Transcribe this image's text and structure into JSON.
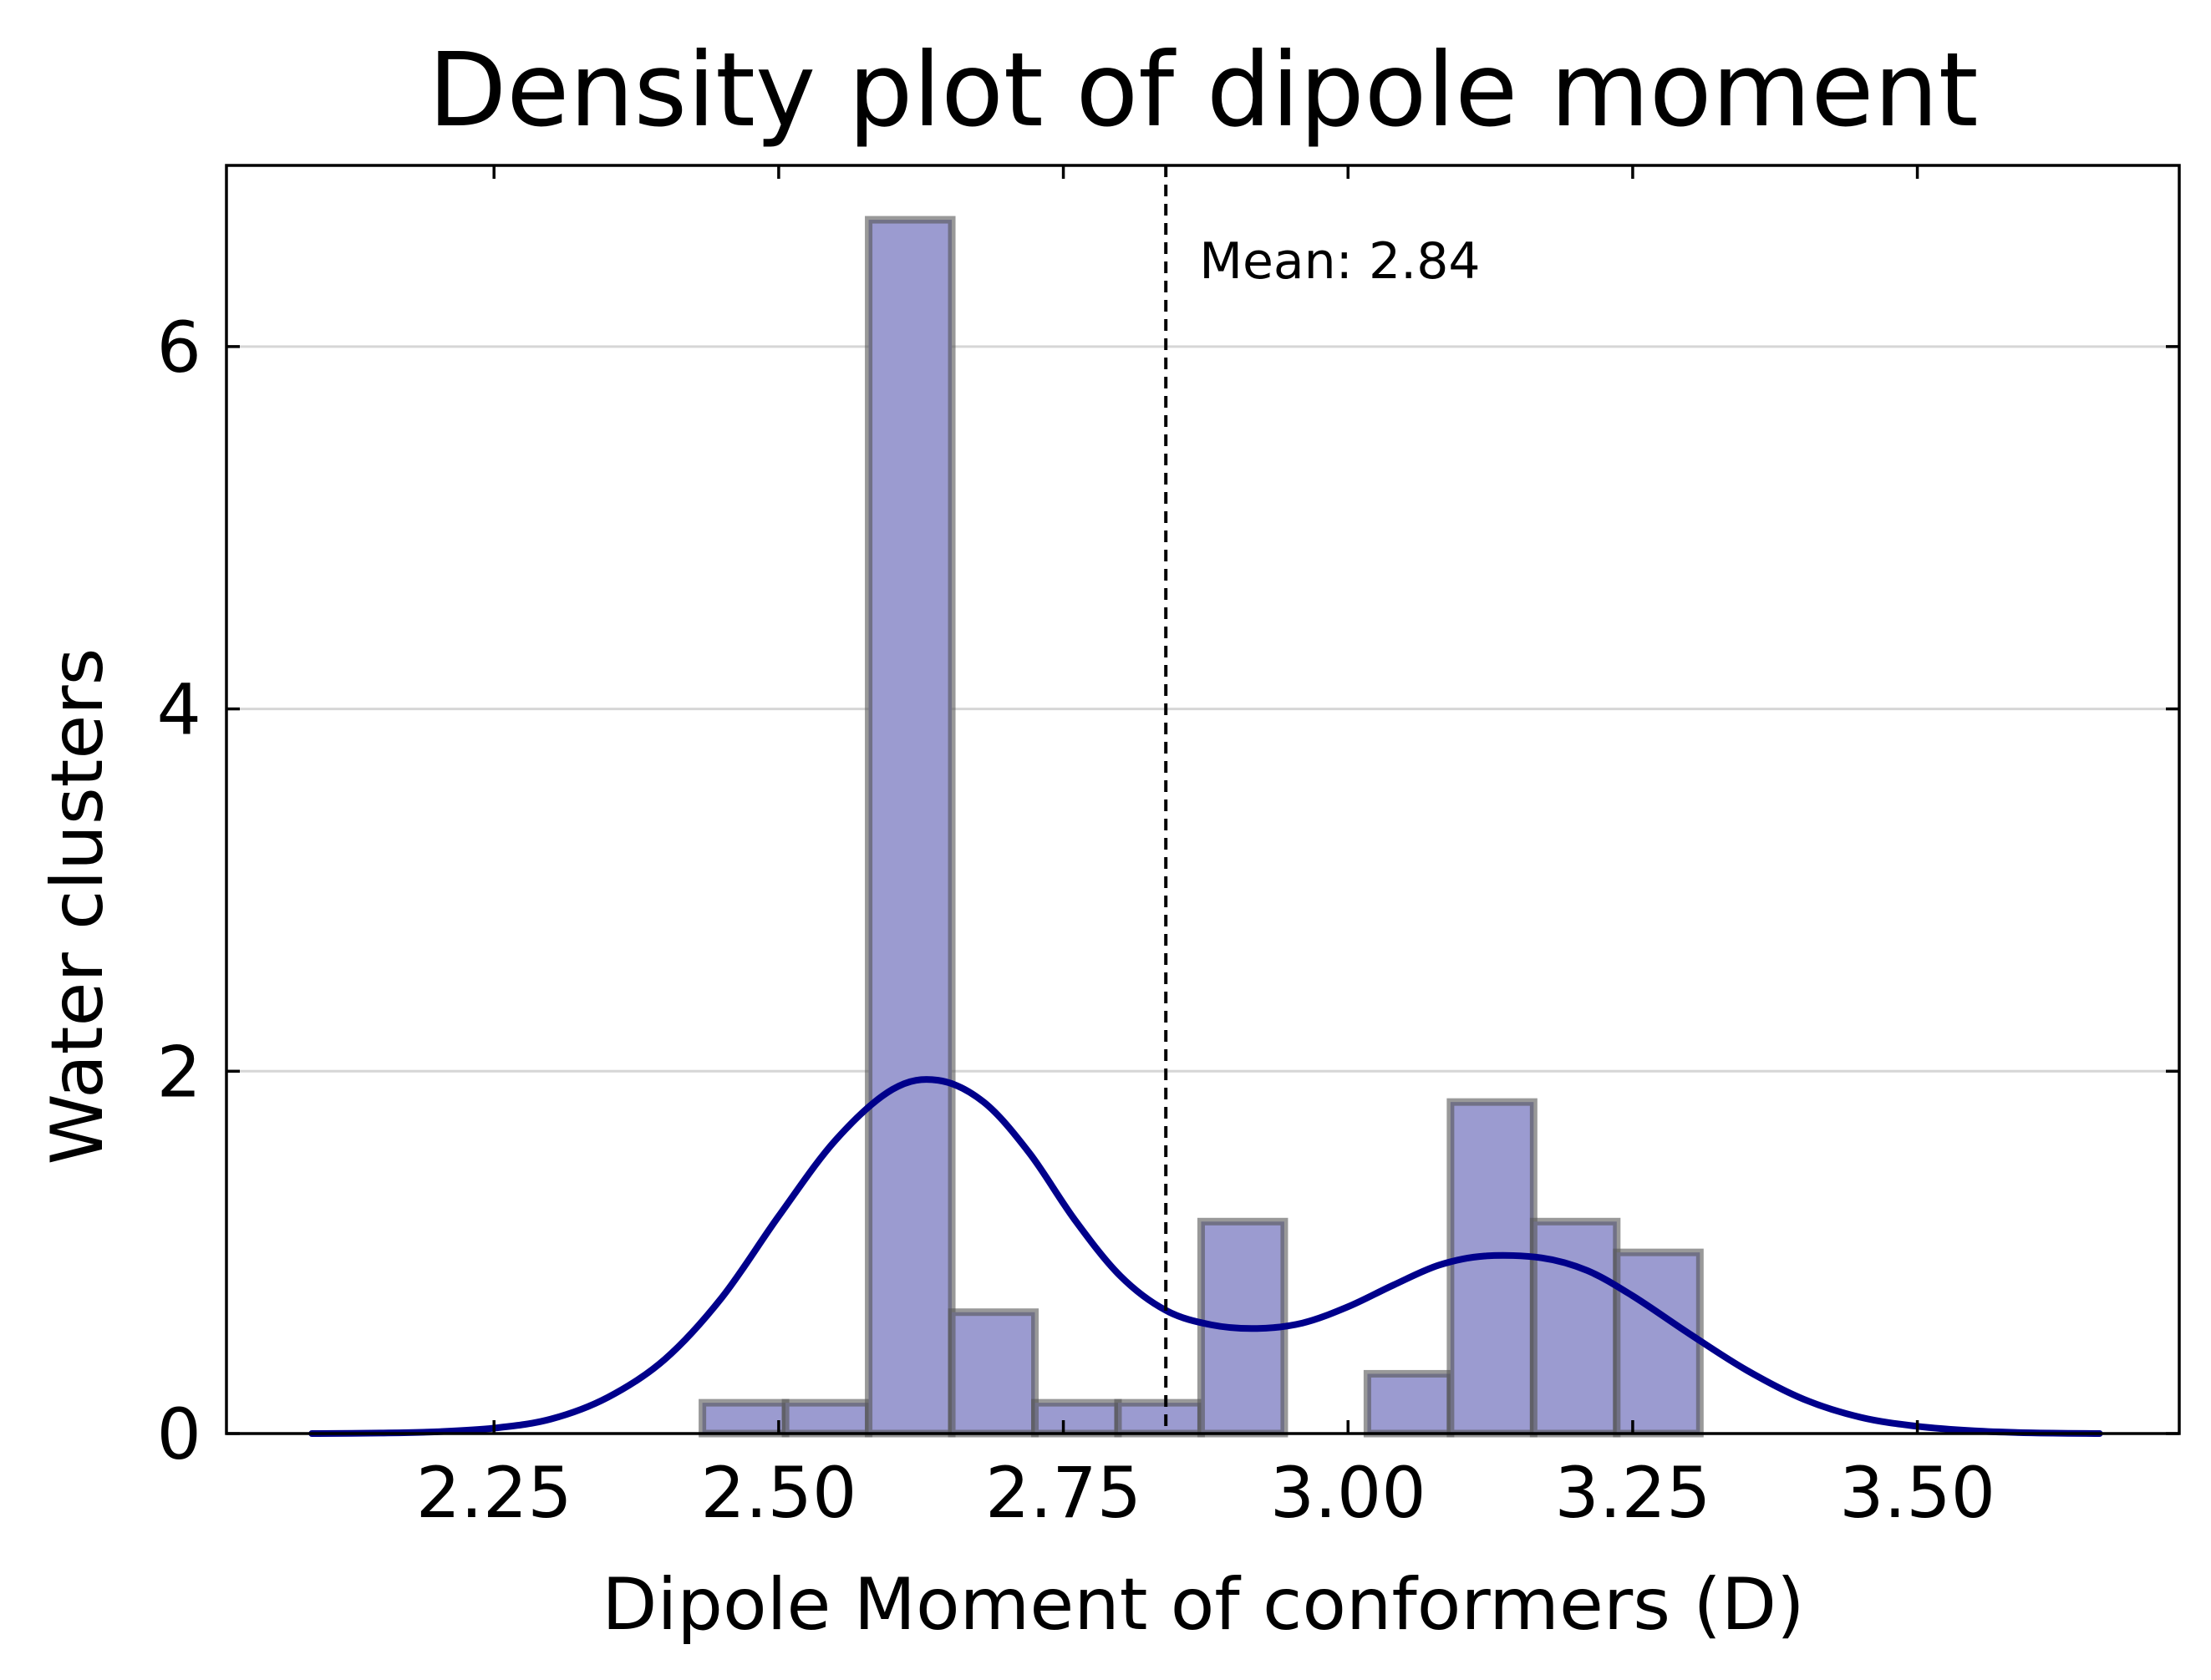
{
  "chart_data": {
    "type": "bar",
    "title": "Density plot of dipole moment",
    "xlabel": "Dipole Moment of conformers (D)",
    "ylabel": "Water clusters",
    "xlim": [
      2.015,
      3.73
    ],
    "ylim": [
      0,
      7.0
    ],
    "xticks": [
      "2.25",
      "2.50",
      "2.75",
      "3.00",
      "3.25",
      "3.50"
    ],
    "xtick_values": [
      2.25,
      2.5,
      2.75,
      3.0,
      3.25,
      3.5
    ],
    "yticks": [
      "0",
      "2",
      "4",
      "6"
    ],
    "ytick_values": [
      0,
      2,
      4,
      6
    ],
    "grid": "horizontal",
    "histogram": {
      "bin_edges": [
        2.433,
        2.506,
        2.579,
        2.652,
        2.725,
        2.798,
        2.871,
        2.944,
        3.017,
        3.09,
        3.163,
        3.236,
        3.309
      ],
      "values": [
        0.17,
        0.17,
        6.7,
        0.67,
        0.17,
        0.17,
        1.17,
        0,
        0.33,
        1.83,
        1.17,
        1.0
      ],
      "color": "#9b9bd0",
      "edge_color": "#555555"
    },
    "kde": {
      "color": "#00008b",
      "x": [
        2.09,
        2.15,
        2.2,
        2.25,
        2.3,
        2.35,
        2.4,
        2.45,
        2.5,
        2.55,
        2.6,
        2.64,
        2.68,
        2.72,
        2.76,
        2.8,
        2.84,
        2.88,
        2.92,
        2.96,
        3.0,
        3.04,
        3.08,
        3.12,
        3.17,
        3.21,
        3.25,
        3.3,
        3.35,
        3.4,
        3.45,
        3.5,
        3.55,
        3.6,
        3.66
      ],
      "y": [
        0.0,
        0.003,
        0.01,
        0.03,
        0.08,
        0.2,
        0.41,
        0.75,
        1.2,
        1.62,
        1.9,
        1.95,
        1.83,
        1.55,
        1.18,
        0.87,
        0.68,
        0.6,
        0.58,
        0.61,
        0.7,
        0.82,
        0.93,
        0.98,
        0.97,
        0.9,
        0.76,
        0.55,
        0.35,
        0.19,
        0.09,
        0.04,
        0.015,
        0.004,
        0.0
      ]
    },
    "mean": {
      "value": 2.84,
      "label": "Mean: 2.84"
    }
  }
}
